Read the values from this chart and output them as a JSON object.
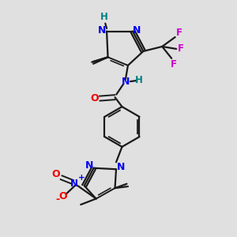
{
  "background_color": "#e0e0e0",
  "bond_color": "#1a1a1a",
  "N_color": "#0000ee",
  "O_color": "#ee0000",
  "F_color": "#cc00cc",
  "H_color": "#008080",
  "figsize": [
    3.0,
    3.0
  ],
  "dpi": 100,
  "xlim": [
    0,
    10
  ],
  "ylim": [
    0,
    10
  ]
}
